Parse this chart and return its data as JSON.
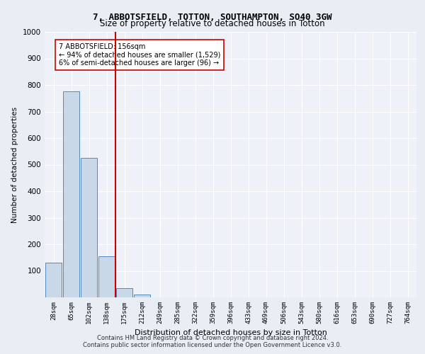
{
  "title1": "7, ABBOTSFIELD, TOTTON, SOUTHAMPTON, SO40 3GW",
  "title2": "Size of property relative to detached houses in Totton",
  "xlabel": "Distribution of detached houses by size in Totton",
  "ylabel": "Number of detached properties",
  "footer1": "Contains HM Land Registry data © Crown copyright and database right 2024.",
  "footer2": "Contains public sector information licensed under the Open Government Licence v3.0.",
  "bin_labels": [
    "28sqm",
    "65sqm",
    "102sqm",
    "138sqm",
    "175sqm",
    "212sqm",
    "249sqm",
    "285sqm",
    "322sqm",
    "359sqm",
    "396sqm",
    "433sqm",
    "469sqm",
    "506sqm",
    "543sqm",
    "580sqm",
    "616sqm",
    "653sqm",
    "690sqm",
    "727sqm",
    "764sqm"
  ],
  "bar_values": [
    130,
    775,
    525,
    155,
    35,
    10,
    0,
    0,
    0,
    0,
    0,
    0,
    0,
    0,
    0,
    0,
    0,
    0,
    0,
    0,
    0
  ],
  "bar_color": "#c8d8e8",
  "bar_edge_color": "#5588bb",
  "vline_x": 3.5,
  "vline_color": "#cc0000",
  "annotation_text": "7 ABBOTSFIELD: 156sqm\n← 94% of detached houses are smaller (1,529)\n6% of semi-detached houses are larger (96) →",
  "annotation_box_color": "#ffffff",
  "annotation_box_edgecolor": "#cc0000",
  "ylim": [
    0,
    1000
  ],
  "yticks": [
    0,
    100,
    200,
    300,
    400,
    500,
    600,
    700,
    800,
    900,
    1000
  ],
  "bg_color": "#e8eef4",
  "plot_bg_color": "#eef2f8"
}
